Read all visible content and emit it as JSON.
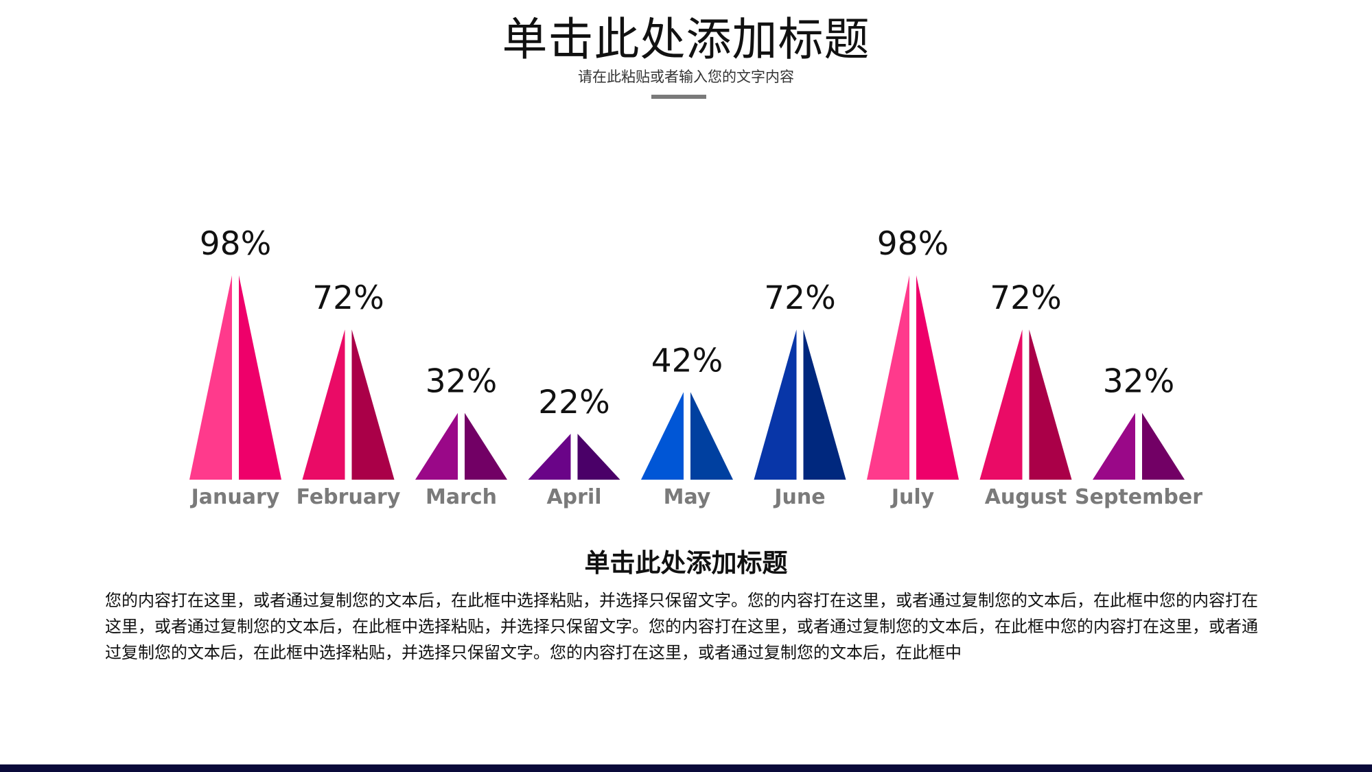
{
  "header": {
    "title": "单击此处添加标题",
    "subtitle": "请在此粘贴或者输入您的文字内容"
  },
  "chart_data": {
    "type": "bar",
    "categories": [
      "January",
      "February",
      "March",
      "April",
      "May",
      "June",
      "July",
      "August",
      "September"
    ],
    "values": [
      98,
      72,
      32,
      22,
      42,
      72,
      98,
      72,
      32
    ],
    "value_labels": [
      "98%",
      "72%",
      "32%",
      "22%",
      "42%",
      "72%",
      "98%",
      "72%",
      "32%"
    ],
    "title": "",
    "xlabel": "",
    "ylabel": "",
    "grid": false,
    "colors": [
      [
        "#ff3a8c",
        "#ee006a"
      ],
      [
        "#ea0b66",
        "#aa0048"
      ],
      [
        "#9a0888",
        "#720065"
      ],
      [
        "#6a0488",
        "#4a0068"
      ],
      [
        "#0056d6",
        "#0040a0"
      ],
      [
        "#0836a8",
        "#00287e"
      ],
      [
        "#ff3a8c",
        "#ee006a"
      ],
      [
        "#ea0b66",
        "#aa0048"
      ],
      [
        "#9a0888",
        "#720065"
      ]
    ],
    "label_color": "#7a7a7a"
  },
  "section": {
    "title": "单击此处添加标题",
    "body": "您的内容打在这里，或者通过复制您的文本后，在此框中选择粘贴，并选择只保留文字。您的内容打在这里，或者通过复制您的文本后，在此框中您的内容打在这里，或者通过复制您的文本后，在此框中选择粘贴，并选择只保留文字。您的内容打在这里，或者通过复制您的文本后，在此框中您的内容打在这里，或者通过复制您的文本后，在此框中选择粘贴，并选择只保留文字。您的内容打在这里，或者通过复制您的文本后，在此框中"
  }
}
